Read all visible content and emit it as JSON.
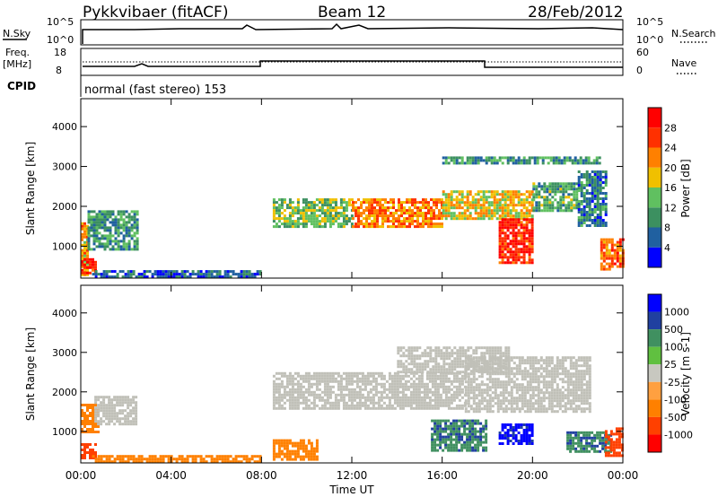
{
  "header": {
    "station": "Pykkvibaer (fitACF)",
    "beam": "Beam 12",
    "date": "28/Feb/2012"
  },
  "noise_panel": {
    "left_label": "N.Sky",
    "right_label": "N.Search",
    "left_ticks": [
      "10^5",
      "10^0"
    ],
    "right_ticks": [
      "10^5",
      "10^0"
    ]
  },
  "freq_panel": {
    "label_line1": "Freq.",
    "label_line2": "[MHz]",
    "right_label": "Nave",
    "left_ticks": [
      "18",
      "8"
    ],
    "right_ticks": [
      "60",
      "0"
    ]
  },
  "cpid_panel": {
    "label": "CPID",
    "mode_text": "normal (fast stereo) 153"
  },
  "colors": {
    "power": [
      "#0000ff",
      "#2060a0",
      "#3c9060",
      "#60c060",
      "#f0c000",
      "#ff8000",
      "#ff3000",
      "#ff0000"
    ],
    "velocity": [
      "#ff0000",
      "#ff4000",
      "#ff8000",
      "#ffa040",
      "#c8c8c0",
      "#60c040",
      "#409060",
      "#2040a0",
      "#0000ff"
    ],
    "ground_scatter": "#c0c0b8"
  },
  "chart_data": [
    {
      "type": "heatmap",
      "panel": "power",
      "ylabel": "Slant Range [km]",
      "yticks": [
        "1000",
        "2000",
        "3000",
        "4000"
      ],
      "ylim": [
        200,
        4700
      ],
      "colorbar_label": "Power [dB]",
      "colorbar_ticks": [
        "4",
        "8",
        "12",
        "16",
        "20",
        "24",
        "28"
      ],
      "colorbar_range": [
        0,
        32
      ],
      "regions": [
        {
          "t0": 0.0,
          "t1": 0.3,
          "r0": 300,
          "r1": 1600,
          "level": 20
        },
        {
          "t0": 0.3,
          "t1": 2.5,
          "r0": 900,
          "r1": 1900,
          "level": 10
        },
        {
          "t0": 0.0,
          "t1": 0.6,
          "r0": 300,
          "r1": 700,
          "level": 28
        },
        {
          "t0": 8.5,
          "t1": 12.0,
          "r0": 1500,
          "r1": 2200,
          "level": 14
        },
        {
          "t0": 12.0,
          "t1": 16.0,
          "r0": 1500,
          "r1": 2200,
          "level": 22
        },
        {
          "t0": 16.0,
          "t1": 20.0,
          "r0": 1700,
          "r1": 2400,
          "level": 18
        },
        {
          "t0": 18.5,
          "t1": 20.0,
          "r0": 600,
          "r1": 1700,
          "level": 28
        },
        {
          "t0": 20.0,
          "t1": 22.0,
          "r0": 1900,
          "r1": 2600,
          "level": 12
        },
        {
          "t0": 22.0,
          "t1": 23.2,
          "r0": 1500,
          "r1": 2900,
          "level": 8
        },
        {
          "t0": 23.0,
          "t1": 24.0,
          "r0": 400,
          "r1": 1200,
          "level": 24
        },
        {
          "t0": 16.0,
          "t1": 23.0,
          "r0": 3050,
          "r1": 3250,
          "level": 10
        },
        {
          "t0": 0.5,
          "t1": 8.0,
          "r0": 250,
          "r1": 400,
          "level": 6
        }
      ]
    },
    {
      "type": "heatmap",
      "panel": "velocity",
      "ylabel": "Slant Range [km]",
      "yticks": [
        "1000",
        "2000",
        "3000",
        "4000"
      ],
      "ylim": [
        200,
        4700
      ],
      "xlabel": "Time UT",
      "xticks": [
        "00:00",
        "04:00",
        "08:00",
        "12:00",
        "16:00",
        "20:00",
        "00:00"
      ],
      "xlim": [
        0,
        24
      ],
      "colorbar_label": "Velocity [m s-1]",
      "colorbar_ticks": [
        "1000",
        "500",
        "100",
        "25",
        "-25",
        "-100",
        "-500",
        "-1000"
      ],
      "regions": [
        {
          "t0": 0.0,
          "t1": 0.6,
          "r0": 300,
          "r1": 700,
          "level": -500
        },
        {
          "t0": 0.0,
          "t1": 0.8,
          "r0": 1000,
          "r1": 1700,
          "level": -100
        },
        {
          "t0": 0.6,
          "t1": 2.5,
          "r0": 1200,
          "r1": 1900,
          "level": 0
        },
        {
          "t0": 8.5,
          "t1": 17.0,
          "r0": 1600,
          "r1": 2500,
          "level": 0
        },
        {
          "t0": 14.0,
          "t1": 19.0,
          "r0": 2500,
          "r1": 3150,
          "level": 0
        },
        {
          "t0": 17.0,
          "t1": 22.5,
          "r0": 1500,
          "r1": 2900,
          "level": 0
        },
        {
          "t0": 15.5,
          "t1": 18.0,
          "r0": 500,
          "r1": 1300,
          "level": 250
        },
        {
          "t0": 18.5,
          "t1": 20.0,
          "r0": 700,
          "r1": 1200,
          "level": 1000
        },
        {
          "t0": 21.5,
          "t1": 23.5,
          "r0": 500,
          "r1": 1000,
          "level": 250
        },
        {
          "t0": 23.2,
          "t1": 24.0,
          "r0": 400,
          "r1": 1100,
          "level": -500
        },
        {
          "t0": 8.5,
          "t1": 10.5,
          "r0": 300,
          "r1": 800,
          "level": -100
        },
        {
          "t0": 0.5,
          "t1": 8.0,
          "r0": 250,
          "r1": 400,
          "level": -100
        }
      ]
    }
  ]
}
